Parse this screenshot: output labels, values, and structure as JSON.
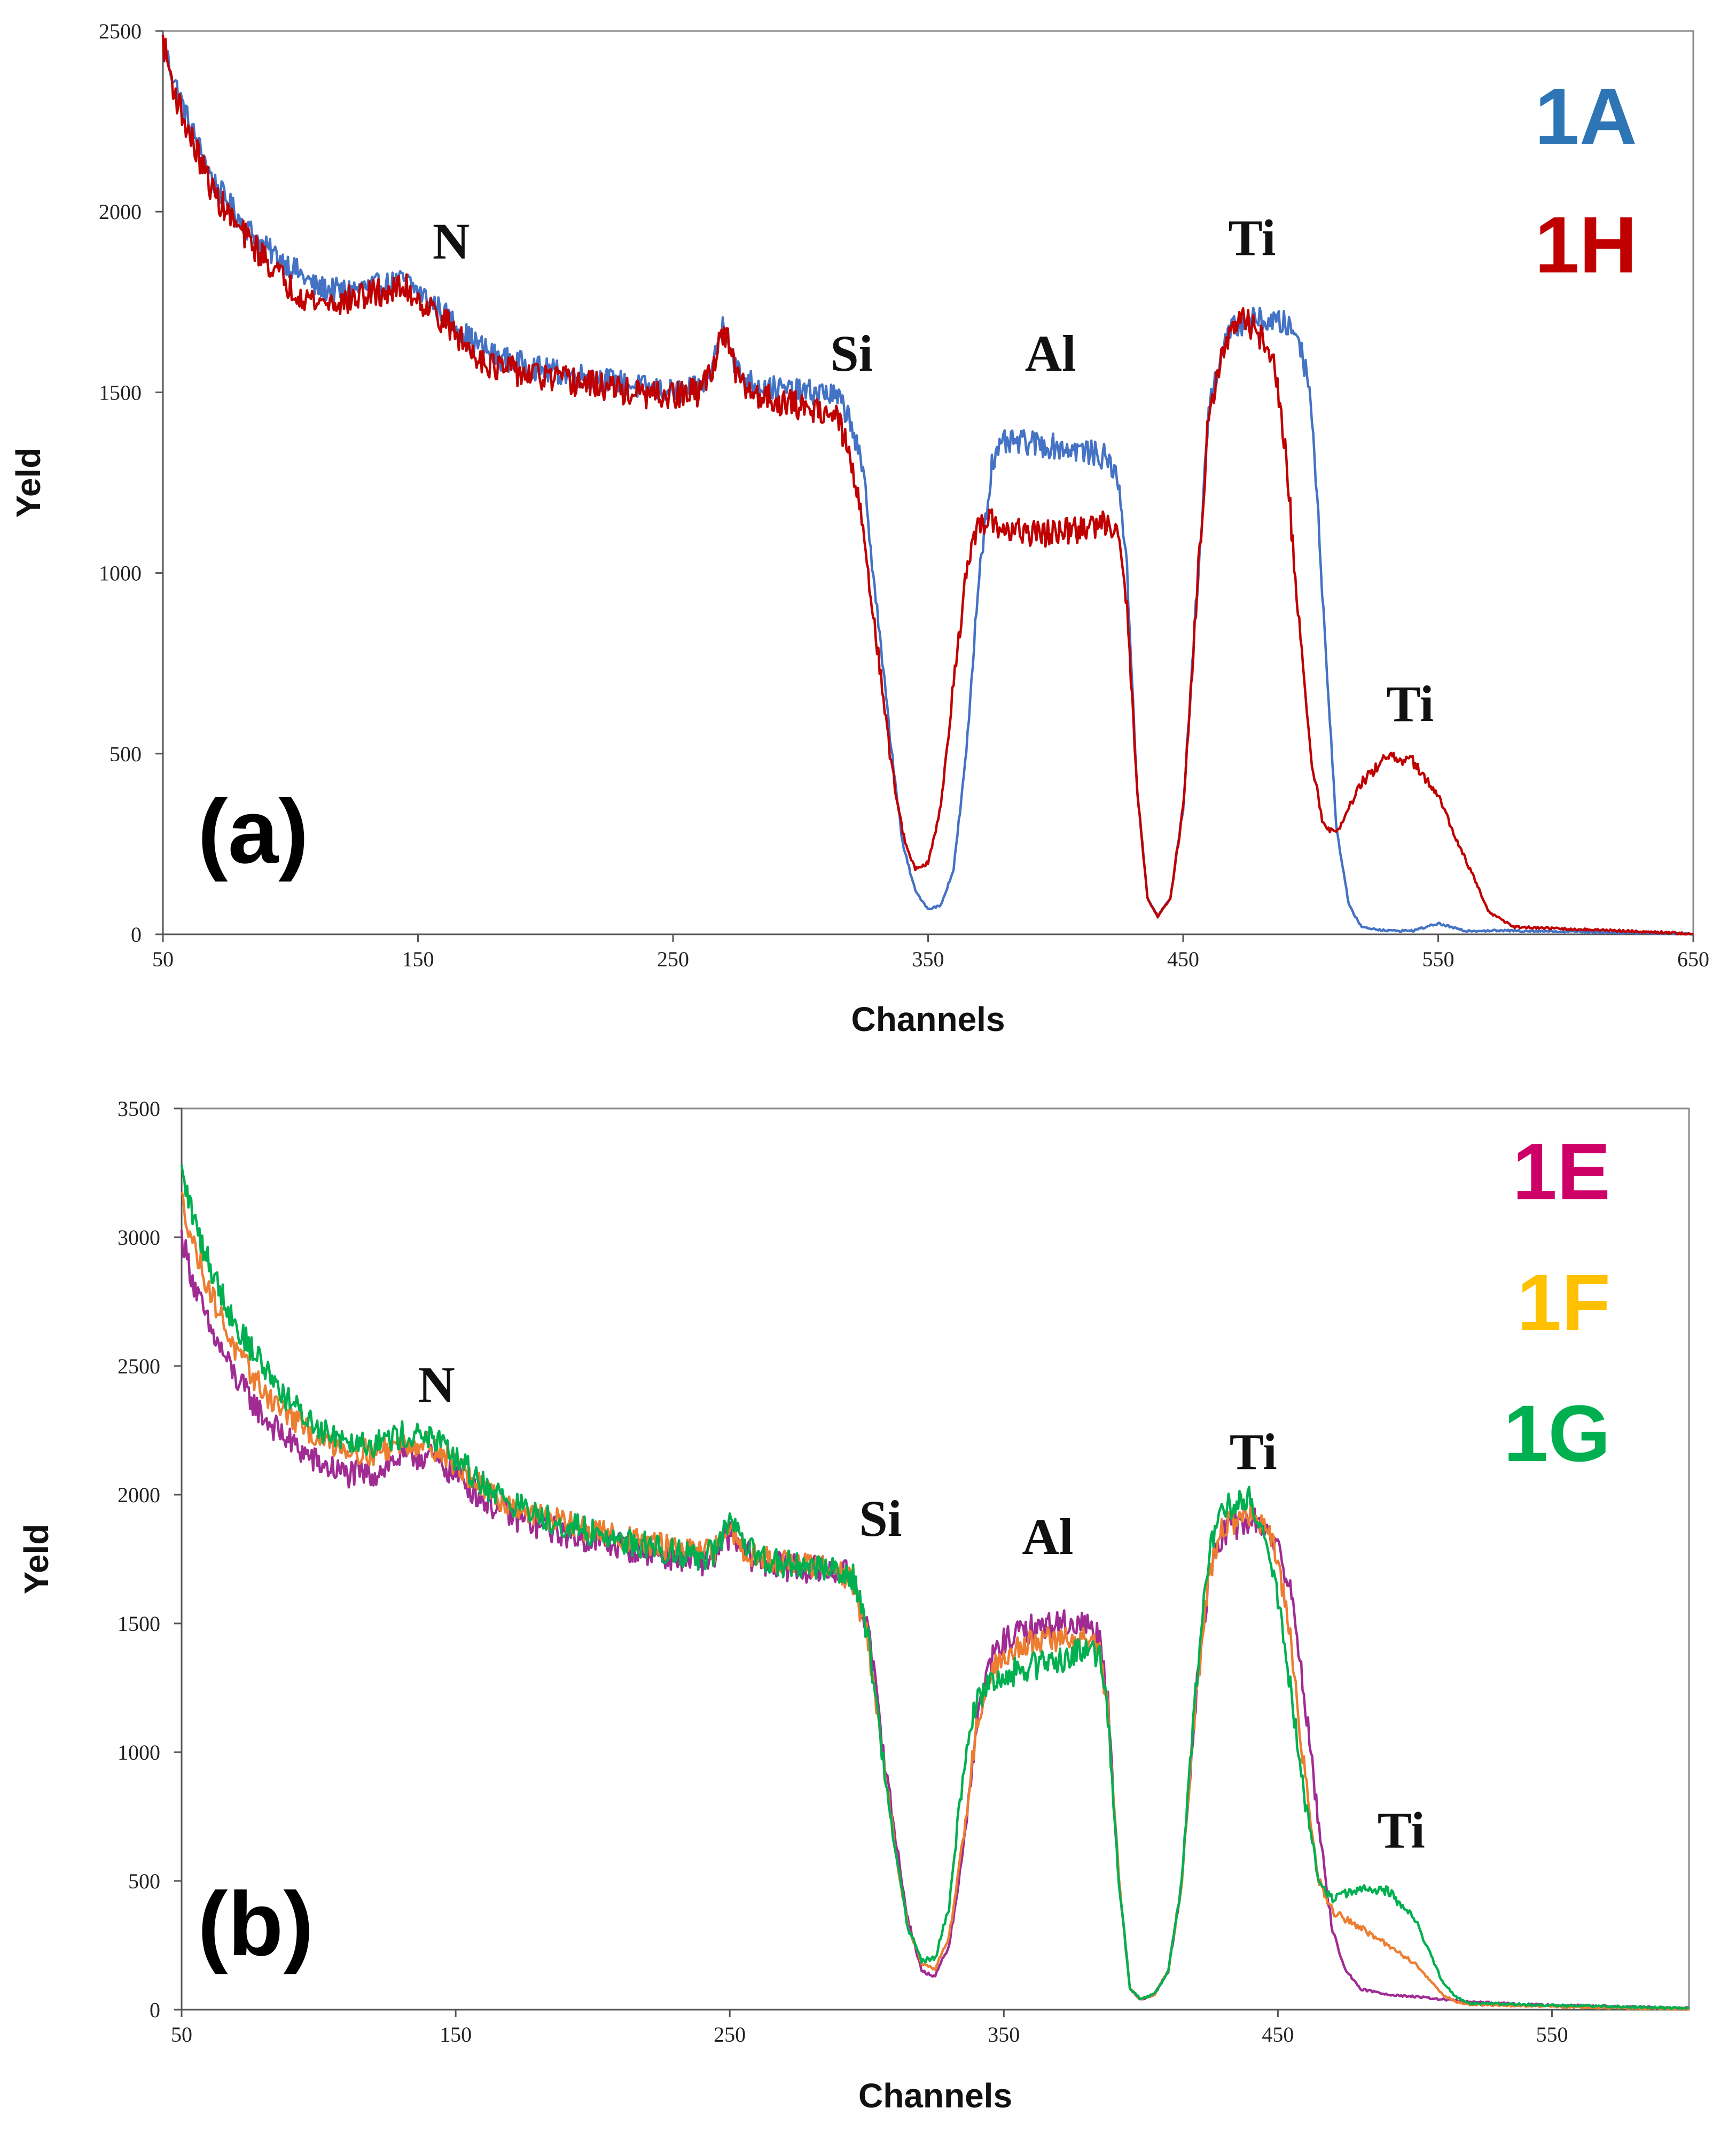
{
  "chart_data": [
    {
      "type": "line",
      "panel_label": "(a)",
      "xlabel": "Channels",
      "ylabel": "Yeld",
      "xlim": [
        50,
        650
      ],
      "ylim": [
        0,
        2500
      ],
      "xticks": [
        50,
        150,
        250,
        350,
        450,
        550,
        650
      ],
      "yticks": [
        0,
        500,
        1000,
        1500,
        2000,
        2500
      ],
      "xtick_labels": [
        "50",
        "150",
        "250",
        "350",
        "450",
        "550",
        "650"
      ],
      "ytick_labels": [
        "0",
        "500",
        "1000",
        "1500",
        "2000",
        "2500"
      ],
      "legend_position": "top-right",
      "annotations": [
        {
          "text": "N",
          "x": 163,
          "y": 1870
        },
        {
          "text": "Si",
          "x": 320,
          "y": 1560
        },
        {
          "text": "Al",
          "x": 398,
          "y": 1560
        },
        {
          "text": "Ti",
          "x": 477,
          "y": 1880
        },
        {
          "text": "Ti",
          "x": 539,
          "y": 590
        }
      ],
      "series": [
        {
          "name": "1A",
          "color": "#4472C4",
          "label_color": "#2E75B6",
          "noise": 35,
          "x": [
            50,
            55,
            60,
            70,
            80,
            90,
            100,
            110,
            120,
            130,
            140,
            145,
            150,
            160,
            170,
            180,
            200,
            220,
            240,
            250,
            260,
            265,
            270,
            275,
            280,
            290,
            300,
            310,
            315,
            320,
            325,
            330,
            335,
            340,
            345,
            350,
            355,
            360,
            365,
            370,
            375,
            380,
            390,
            400,
            410,
            420,
            425,
            428,
            432,
            436,
            440,
            445,
            450,
            455,
            460,
            465,
            470,
            475,
            480,
            490,
            495,
            500,
            505,
            510,
            515,
            520,
            530,
            540,
            550,
            560,
            580,
            600,
            620,
            640,
            650
          ],
          "y": [
            2470,
            2350,
            2250,
            2080,
            1980,
            1900,
            1850,
            1790,
            1780,
            1790,
            1800,
            1810,
            1780,
            1720,
            1650,
            1600,
            1560,
            1540,
            1510,
            1500,
            1510,
            1560,
            1700,
            1560,
            1530,
            1510,
            1500,
            1500,
            1480,
            1420,
            1250,
            900,
            550,
            250,
            120,
            70,
            80,
            180,
            500,
            1000,
            1300,
            1360,
            1360,
            1350,
            1340,
            1320,
            1250,
            1000,
            400,
            100,
            50,
            100,
            350,
            900,
            1450,
            1620,
            1680,
            1700,
            1700,
            1690,
            1660,
            1500,
            900,
            300,
            80,
            20,
            10,
            10,
            30,
            10,
            10,
            8,
            5,
            3,
            0
          ]
        },
        {
          "name": "1H",
          "color": "#C00000",
          "label_color": "#C00000",
          "noise": 40,
          "x": [
            50,
            55,
            60,
            70,
            80,
            90,
            100,
            110,
            120,
            130,
            140,
            145,
            150,
            160,
            170,
            180,
            200,
            220,
            240,
            250,
            260,
            265,
            270,
            275,
            280,
            290,
            300,
            310,
            315,
            320,
            325,
            330,
            335,
            340,
            345,
            350,
            355,
            360,
            365,
            370,
            375,
            380,
            390,
            400,
            410,
            420,
            425,
            428,
            432,
            436,
            440,
            445,
            450,
            455,
            460,
            465,
            470,
            475,
            480,
            485,
            490,
            495,
            500,
            505,
            510,
            515,
            520,
            530,
            540,
            550,
            560,
            570,
            580,
            600,
            620,
            640,
            650
          ],
          "y": [
            2470,
            2320,
            2220,
            2050,
            1950,
            1870,
            1790,
            1750,
            1750,
            1770,
            1780,
            1790,
            1760,
            1700,
            1620,
            1570,
            1540,
            1520,
            1490,
            1490,
            1500,
            1560,
            1680,
            1540,
            1500,
            1480,
            1460,
            1450,
            1420,
            1300,
            1100,
            800,
            500,
            280,
            180,
            200,
            350,
            700,
            1000,
            1130,
            1140,
            1120,
            1110,
            1110,
            1120,
            1140,
            1120,
            900,
            400,
            100,
            50,
            100,
            350,
            900,
            1450,
            1600,
            1680,
            1700,
            1660,
            1600,
            1350,
            900,
            500,
            300,
            280,
            350,
            420,
            490,
            480,
            380,
            220,
            60,
            20,
            15,
            10,
            5,
            0
          ]
        }
      ]
    },
    {
      "type": "line",
      "panel_label": "(b)",
      "xlabel": "Channels",
      "ylabel": "Yeld",
      "xlim": [
        50,
        600
      ],
      "ylim": [
        0,
        3500
      ],
      "xticks": [
        50,
        150,
        250,
        350,
        450,
        550
      ],
      "yticks": [
        0,
        500,
        1000,
        1500,
        2000,
        2500,
        3000,
        3500
      ],
      "xtick_labels": [
        "50",
        "150",
        "250",
        "350",
        "450",
        "550"
      ],
      "ytick_labels": [
        "0",
        "500",
        "1000",
        "1500",
        "2000",
        "2500",
        "3000",
        "3500"
      ],
      "legend_position": "top-right",
      "annotations": [
        {
          "text": "N",
          "x": 143,
          "y": 2360
        },
        {
          "text": "Si",
          "x": 305,
          "y": 1840
        },
        {
          "text": "Al",
          "x": 366,
          "y": 1770
        },
        {
          "text": "Ti",
          "x": 441,
          "y": 2100
        },
        {
          "text": "Ti",
          "x": 495,
          "y": 630
        }
      ],
      "series": [
        {
          "name": "1E",
          "color": "#A02B93",
          "label_color": "#CC0066",
          "noise": 55,
          "x": [
            50,
            55,
            60,
            70,
            80,
            90,
            100,
            110,
            120,
            130,
            140,
            150,
            160,
            170,
            180,
            200,
            220,
            240,
            245,
            250,
            255,
            260,
            270,
            280,
            290,
            295,
            300,
            305,
            310,
            315,
            320,
            325,
            330,
            335,
            340,
            345,
            350,
            360,
            370,
            380,
            385,
            388,
            392,
            396,
            400,
            405,
            410,
            415,
            420,
            425,
            430,
            435,
            440,
            445,
            450,
            455,
            460,
            465,
            470,
            475,
            480,
            490,
            500,
            510,
            520,
            540,
            560,
            580,
            600
          ],
          "y": [
            3000,
            2800,
            2650,
            2450,
            2300,
            2200,
            2120,
            2080,
            2080,
            2150,
            2150,
            2080,
            1980,
            1920,
            1880,
            1820,
            1780,
            1740,
            1760,
            1850,
            1780,
            1740,
            1720,
            1710,
            1700,
            1680,
            1500,
            1100,
            700,
            350,
            150,
            130,
            250,
            600,
            1100,
            1350,
            1430,
            1480,
            1500,
            1500,
            1450,
            1200,
            500,
            80,
            40,
            60,
            150,
            500,
            1200,
            1700,
            1850,
            1880,
            1900,
            1880,
            1800,
            1600,
            1200,
            700,
            300,
            150,
            80,
            60,
            50,
            40,
            30,
            20,
            15,
            10,
            5
          ]
        },
        {
          "name": "1F",
          "color": "#ED7D31",
          "label_color": "#FFC000",
          "noise": 50,
          "x": [
            50,
            55,
            60,
            70,
            80,
            90,
            100,
            110,
            120,
            130,
            140,
            150,
            160,
            170,
            180,
            200,
            220,
            240,
            245,
            250,
            255,
            260,
            270,
            280,
            290,
            295,
            300,
            305,
            310,
            315,
            320,
            325,
            330,
            335,
            340,
            345,
            350,
            360,
            370,
            380,
            385,
            388,
            392,
            396,
            400,
            405,
            410,
            415,
            420,
            425,
            430,
            435,
            440,
            445,
            450,
            455,
            460,
            465,
            470,
            475,
            480,
            490,
            500,
            505,
            510,
            515,
            520,
            540,
            560,
            580,
            600
          ],
          "y": [
            3150,
            2950,
            2800,
            2550,
            2400,
            2300,
            2220,
            2180,
            2160,
            2200,
            2200,
            2120,
            2020,
            1960,
            1920,
            1860,
            1810,
            1770,
            1790,
            1880,
            1790,
            1760,
            1740,
            1720,
            1700,
            1660,
            1450,
            1050,
            650,
            330,
            180,
            160,
            280,
            650,
            1100,
            1300,
            1380,
            1430,
            1440,
            1440,
            1400,
            1150,
            500,
            80,
            40,
            60,
            150,
            500,
            1200,
            1700,
            1880,
            1900,
            1920,
            1880,
            1750,
            1400,
            900,
            500,
            380,
            350,
            320,
            250,
            180,
            120,
            60,
            30,
            20,
            15,
            10,
            5,
            3
          ]
        },
        {
          "name": "1G",
          "color": "#00B050",
          "label_color": "#00B050",
          "noise": 55,
          "x": [
            50,
            55,
            60,
            70,
            80,
            90,
            100,
            110,
            120,
            130,
            140,
            150,
            160,
            170,
            180,
            200,
            220,
            240,
            245,
            250,
            255,
            260,
            270,
            280,
            290,
            295,
            300,
            305,
            310,
            315,
            320,
            325,
            330,
            335,
            340,
            345,
            350,
            360,
            370,
            380,
            385,
            388,
            392,
            396,
            400,
            405,
            410,
            415,
            420,
            425,
            430,
            435,
            440,
            445,
            450,
            455,
            460,
            465,
            470,
            475,
            480,
            490,
            500,
            505,
            510,
            515,
            520,
            540,
            560,
            580,
            600
          ],
          "y": [
            3250,
            3050,
            2900,
            2650,
            2500,
            2350,
            2260,
            2220,
            2200,
            2230,
            2230,
            2140,
            2040,
            1970,
            1920,
            1850,
            1800,
            1760,
            1780,
            1900,
            1800,
            1760,
            1730,
            1720,
            1710,
            1680,
            1480,
            1050,
            650,
            320,
            190,
            200,
            400,
            900,
            1200,
            1280,
            1300,
            1330,
            1360,
            1400,
            1380,
            1150,
            500,
            80,
            40,
            60,
            150,
            500,
            1250,
            1800,
            1950,
            1970,
            1990,
            1850,
            1600,
            1200,
            800,
            500,
            430,
            450,
            470,
            460,
            350,
            230,
            110,
            50,
            25,
            20,
            15,
            10,
            5
          ]
        }
      ]
    }
  ]
}
